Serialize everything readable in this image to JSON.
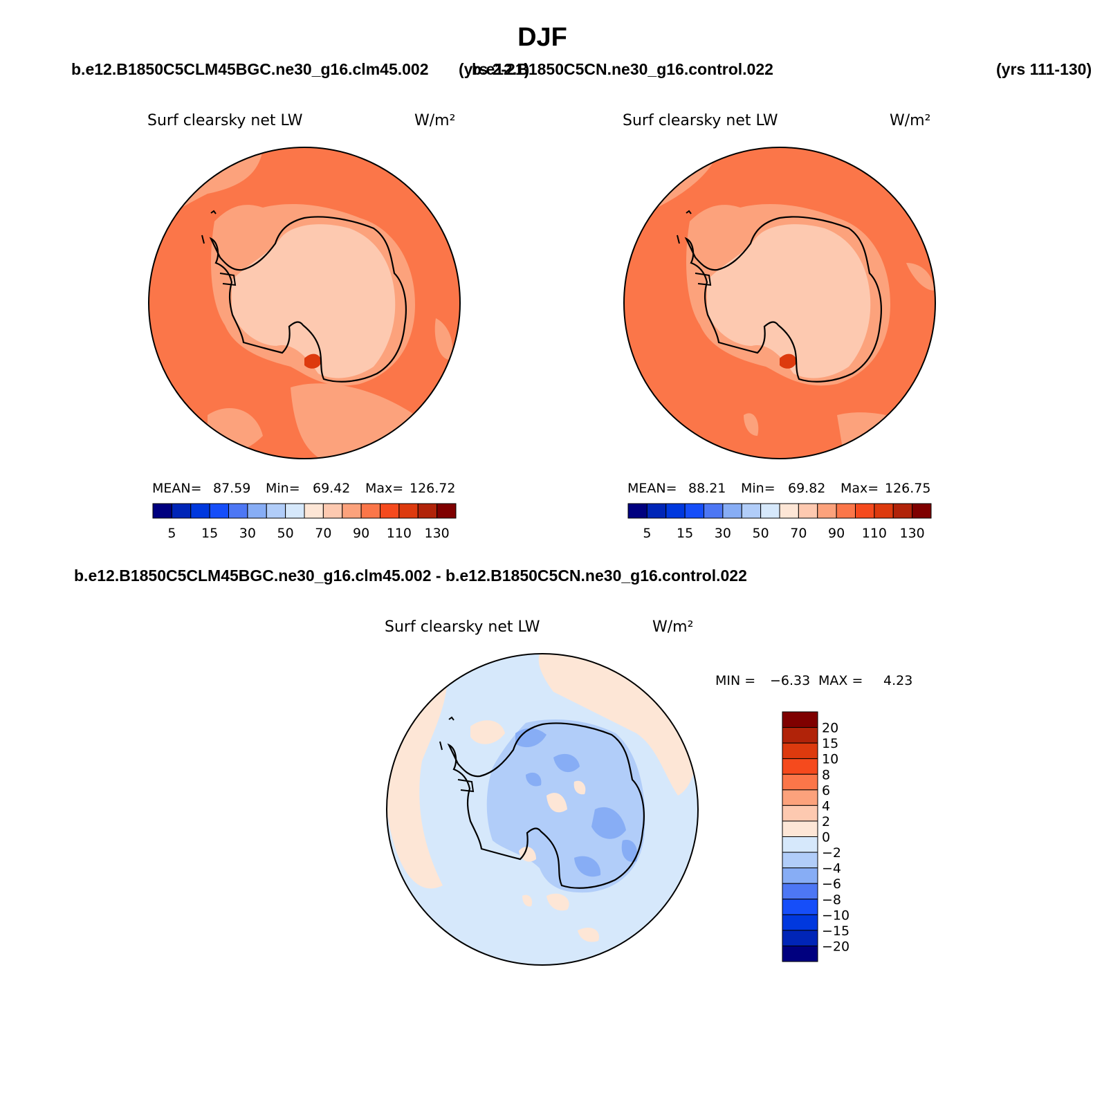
{
  "page_title": "DJF",
  "case_titles": {
    "test_case": "b.e12.B1850C5CLM45BGC.ne30_g16.clm45.002",
    "test_years": "(yrs 2-21)",
    "ctrl_case": "b.e12.B1850C5CN.ne30_g16.control.022",
    "ctrl_years": "(yrs 111-130)"
  },
  "diff_title": "b.e12.B1850C5CLM45BGC.ne30_g16.clm45.002 - b.e12.B1850C5CN.ne30_g16.control.022",
  "colors": {
    "ocean_warm": "#fb7649",
    "mid_warm": "#fca27c",
    "ice_pale": "#fdc9b0",
    "hot_spot": "#dd3a0e",
    "diff_cool": "#d6e8fb",
    "diff_warm": "#fde6d6",
    "diff_blue2": "#b1cdf9",
    "diff_blue3": "#87adf5",
    "outline": "#000000"
  },
  "chart_data": [
    {
      "type": "map",
      "projection": "south polar stereographic",
      "variable": "Surf clearsky net LW",
      "units": "W/m²",
      "stats": {
        "mean_label": "MEAN=",
        "mean": "87.59",
        "min_label": "Min=",
        "min": "69.42",
        "max_label": "Max=",
        "max": "126.72"
      },
      "colorbar": {
        "levels": [
          5,
          10,
          15,
          20,
          30,
          40,
          50,
          60,
          70,
          80,
          90,
          100,
          110,
          120,
          130
        ],
        "tick_labels": [
          "5",
          "15",
          "30",
          "50",
          "70",
          "90",
          "110",
          "130"
        ],
        "colors": [
          "#00007f",
          "#0025b7",
          "#0038de",
          "#164ef9",
          "#4d77f4",
          "#87adf5",
          "#b1cdf9",
          "#d6e8fb",
          "#fde6d6",
          "#fdc9b0",
          "#fca27c",
          "#fb7649",
          "#f54a1d",
          "#dd3a0e",
          "#b12309",
          "#7f0000"
        ]
      }
    },
    {
      "type": "map",
      "projection": "south polar stereographic",
      "variable": "Surf clearsky net LW",
      "units": "W/m²",
      "stats": {
        "mean_label": "MEAN=",
        "mean": "88.21",
        "min_label": "Min=",
        "min": "69.82",
        "max_label": "Max=",
        "max": "126.75"
      },
      "colorbar": {
        "levels": [
          5,
          10,
          15,
          20,
          30,
          40,
          50,
          60,
          70,
          80,
          90,
          100,
          110,
          120,
          130
        ],
        "tick_labels": [
          "5",
          "15",
          "30",
          "50",
          "70",
          "90",
          "110",
          "130"
        ],
        "colors": [
          "#00007f",
          "#0025b7",
          "#0038de",
          "#164ef9",
          "#4d77f4",
          "#87adf5",
          "#b1cdf9",
          "#d6e8fb",
          "#fde6d6",
          "#fdc9b0",
          "#fca27c",
          "#fb7649",
          "#f54a1d",
          "#dd3a0e",
          "#b12309",
          "#7f0000"
        ]
      }
    },
    {
      "type": "map",
      "projection": "south polar stereographic",
      "variable": "Surf clearsky net LW",
      "units": "W/m²",
      "stats": {
        "min_label": "MIN =",
        "min": "−6.33",
        "max_label": "MAX =",
        "max": "4.23"
      },
      "colorbar": {
        "orientation": "vertical",
        "tick_labels": [
          "20",
          "15",
          "10",
          "8",
          "6",
          "4",
          "2",
          "0",
          "−2",
          "−4",
          "−6",
          "−8",
          "−10",
          "−15",
          "−20"
        ],
        "colors": [
          "#7f0000",
          "#b12309",
          "#dd3a0e",
          "#f54a1d",
          "#fb7649",
          "#fca27c",
          "#fdc9b0",
          "#fde6d6",
          "#d6e8fb",
          "#b1cdf9",
          "#87adf5",
          "#4d77f4",
          "#164ef9",
          "#0038de",
          "#0025b7",
          "#00007f"
        ]
      }
    }
  ]
}
